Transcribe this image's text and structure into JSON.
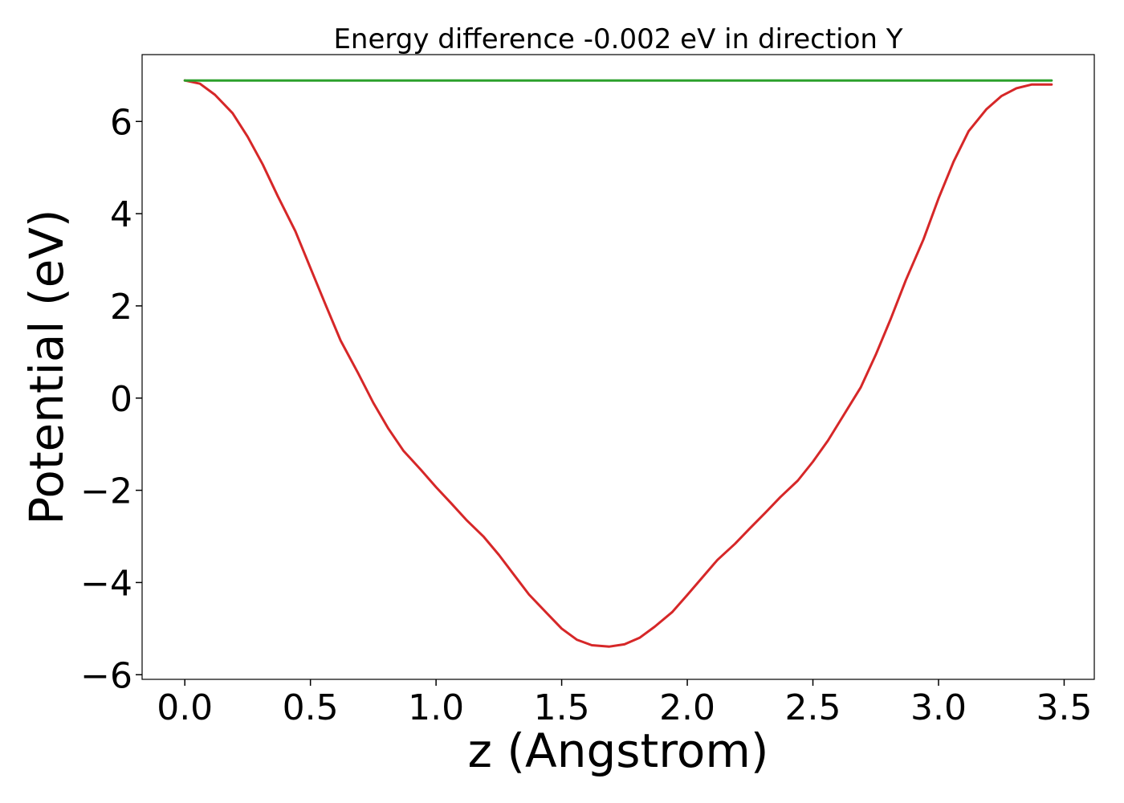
{
  "chart_data": {
    "type": "line",
    "title": "Energy difference -0.002 eV in direction Y",
    "xlabel": "z (Angstrom)",
    "ylabel": "Potential (eV)",
    "xlim": [
      -0.17,
      3.62
    ],
    "ylim": [
      -6.1,
      7.45
    ],
    "xticks": [
      0.0,
      0.5,
      1.0,
      1.5,
      2.0,
      2.5,
      3.0,
      3.5
    ],
    "xtick_labels": [
      "0.0",
      "0.5",
      "1.0",
      "1.5",
      "2.0",
      "2.5",
      "3.0",
      "3.5"
    ],
    "yticks": [
      -6,
      -4,
      -2,
      0,
      2,
      4,
      6
    ],
    "ytick_labels": [
      "−6",
      "−4",
      "−2",
      "0",
      "2",
      "4",
      "6"
    ],
    "grid": false,
    "series": [
      {
        "color": "#d62728",
        "x": [
          0.0,
          0.06,
          0.12,
          0.19,
          0.25,
          0.31,
          0.37,
          0.44,
          0.5,
          0.56,
          0.62,
          0.69,
          0.75,
          0.81,
          0.87,
          0.94,
          1.0,
          1.06,
          1.12,
          1.19,
          1.25,
          1.31,
          1.37,
          1.44,
          1.5,
          1.56,
          1.62,
          1.69,
          1.75,
          1.81,
          1.87,
          1.94,
          2.0,
          2.06,
          2.12,
          2.19,
          2.25,
          2.31,
          2.37,
          2.44,
          2.5,
          2.56,
          2.62,
          2.69,
          2.75,
          2.81,
          2.87,
          2.94,
          3.0,
          3.06,
          3.12,
          3.19,
          3.25,
          3.31,
          3.37,
          3.45
        ],
        "values": [
          6.89,
          6.82,
          6.58,
          6.18,
          5.67,
          5.07,
          4.38,
          3.62,
          2.82,
          2.03,
          1.25,
          0.54,
          -0.1,
          -0.66,
          -1.14,
          -1.56,
          -1.93,
          -2.28,
          -2.64,
          -3.01,
          -3.4,
          -3.83,
          -4.26,
          -4.66,
          -5.0,
          -5.24,
          -5.36,
          -5.39,
          -5.34,
          -5.2,
          -4.96,
          -4.64,
          -4.27,
          -3.89,
          -3.51,
          -3.16,
          -2.82,
          -2.49,
          -2.15,
          -1.79,
          -1.38,
          -0.92,
          -0.39,
          0.23,
          0.94,
          1.72,
          2.56,
          3.44,
          4.33,
          5.13,
          5.79,
          6.26,
          6.55,
          6.72,
          6.8,
          6.8
        ]
      },
      {
        "color": "#2ca02c",
        "x": [
          0.0,
          3.45
        ],
        "values": [
          6.89,
          6.89
        ]
      }
    ]
  }
}
